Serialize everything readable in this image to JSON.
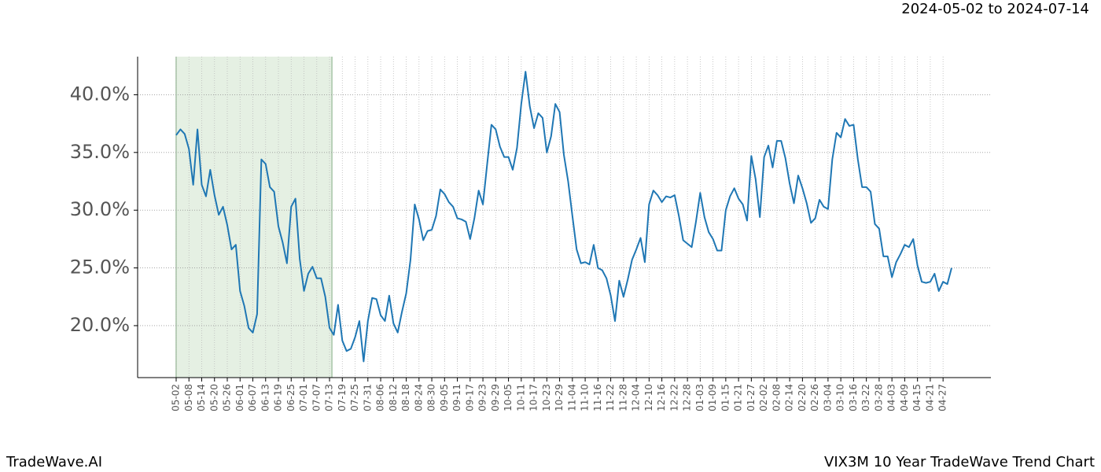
{
  "chart_data": {
    "type": "line",
    "title": "VIX3M 10 Year TradeWave Trend Chart",
    "subtitle": "2024-05-02 to 2024-07-14",
    "brand": "TradeWave.AI",
    "categories": [
      "05-02",
      null,
      null,
      "05-08",
      null,
      null,
      "05-14",
      null,
      null,
      "05-20",
      null,
      null,
      "05-26",
      null,
      null,
      "06-01",
      null,
      null,
      "06-07",
      null,
      null,
      "06-13",
      null,
      null,
      "06-19",
      null,
      null,
      "06-25",
      null,
      null,
      "07-01",
      null,
      null,
      "07-07",
      null,
      null,
      "07-13",
      null,
      null,
      "07-19",
      null,
      null,
      "07-25",
      null,
      null,
      "07-31",
      null,
      null,
      "08-06",
      null,
      null,
      "08-12",
      null,
      null,
      "08-18",
      null,
      null,
      "08-24",
      null,
      null,
      "08-30",
      null,
      null,
      "09-05",
      null,
      null,
      "09-11",
      null,
      null,
      "09-17",
      null,
      null,
      "09-23",
      null,
      null,
      "09-29",
      null,
      null,
      "10-05",
      null,
      null,
      "10-11",
      null,
      null,
      "10-17",
      null,
      null,
      "10-23",
      null,
      null,
      "10-29",
      null,
      null,
      "11-04",
      null,
      null,
      "11-10",
      null,
      null,
      "11-16",
      null,
      null,
      "11-22",
      null,
      null,
      "11-28",
      null,
      null,
      "12-04",
      null,
      null,
      "12-10",
      null,
      null,
      "12-16",
      null,
      null,
      "12-22",
      null,
      null,
      "12-28",
      null,
      null,
      "01-03",
      null,
      null,
      "01-09",
      null,
      null,
      "01-15",
      null,
      null,
      "01-21",
      null,
      null,
      "01-27",
      null,
      null,
      "02-02",
      null,
      null,
      "02-08",
      null,
      null,
      "02-14",
      null,
      null,
      "02-20",
      null,
      null,
      "02-26",
      null,
      null,
      "03-04",
      null,
      null,
      "03-10",
      null,
      null,
      "03-16",
      null,
      null,
      "03-22",
      null,
      null,
      "03-28",
      null,
      null,
      "04-03",
      null,
      null,
      "04-09",
      null,
      null,
      "04-15",
      null,
      null,
      "04-21",
      null,
      null,
      "04-27",
      null,
      null
    ],
    "series": [
      {
        "name": "VIX3M",
        "color": "#1f77b4",
        "values": [
          36.5,
          37.0,
          36.6,
          35.3,
          32.2,
          37.0,
          32.2,
          31.2,
          33.5,
          31.3,
          29.6,
          30.3,
          28.7,
          26.6,
          27.0,
          23.0,
          21.7,
          19.8,
          19.4,
          21.0,
          34.4,
          34.0,
          32.0,
          31.6,
          28.6,
          27.2,
          25.4,
          30.3,
          31.0,
          25.8,
          23.0,
          24.5,
          25.1,
          24.1,
          24.1,
          22.5,
          19.8,
          19.2,
          21.8,
          18.7,
          17.8,
          18.0,
          19.0,
          20.4,
          16.9,
          20.4,
          22.4,
          22.3,
          20.9,
          20.4,
          22.6,
          20.2,
          19.4,
          21.2,
          22.8,
          25.7,
          30.5,
          29.2,
          27.4,
          28.2,
          28.3,
          29.5,
          31.8,
          31.4,
          30.7,
          30.3,
          29.3,
          29.2,
          29.0,
          27.5,
          29.3,
          31.7,
          30.5,
          34.0,
          37.4,
          37.0,
          35.5,
          34.6,
          34.6,
          33.5,
          35.4,
          39.2,
          42.0,
          39.0,
          37.1,
          38.4,
          38.0,
          35.0,
          36.4,
          39.2,
          38.5,
          34.8,
          32.5,
          29.5,
          26.6,
          25.4,
          25.5,
          25.3,
          27.0,
          25.0,
          24.8,
          24.1,
          22.6,
          20.4,
          23.9,
          22.5,
          24.0,
          25.7,
          26.6,
          27.6,
          25.5,
          30.5,
          31.7,
          31.3,
          30.7,
          31.2,
          31.1,
          31.3,
          29.5,
          27.4,
          27.1,
          26.8,
          29.0,
          31.5,
          29.4,
          28.1,
          27.5,
          26.5,
          26.5,
          30.0,
          31.2,
          31.9,
          31.0,
          30.5,
          29.1,
          34.7,
          32.7,
          29.4,
          34.6,
          35.6,
          33.7,
          36.0,
          36.0,
          34.5,
          32.3,
          30.6,
          33.0,
          31.9,
          30.6,
          28.9,
          29.3,
          30.9,
          30.3,
          30.1,
          34.4,
          36.7,
          36.3,
          37.9,
          37.3,
          37.4,
          34.4,
          32.0,
          32.0,
          31.6,
          28.8,
          28.4,
          26.0,
          26.0,
          24.2,
          25.5,
          26.2,
          27.0,
          26.8,
          27.5,
          25.2,
          23.8,
          23.7,
          23.8,
          24.5,
          23.0,
          23.8,
          23.6,
          25.0
        ]
      }
    ],
    "ylim": [
      15.5,
      43.3
    ],
    "yticks": [
      {
        "value": 20,
        "label": "20.0%"
      },
      {
        "value": 25,
        "label": "25.0%"
      },
      {
        "value": 30,
        "label": "30.0%"
      },
      {
        "value": 35,
        "label": "35.0%"
      },
      {
        "value": 40,
        "label": "40.0%"
      }
    ],
    "grid": true,
    "highlight_start": "05-02",
    "highlight_end": "07-13",
    "highlight_color": "#e5f0e3"
  }
}
